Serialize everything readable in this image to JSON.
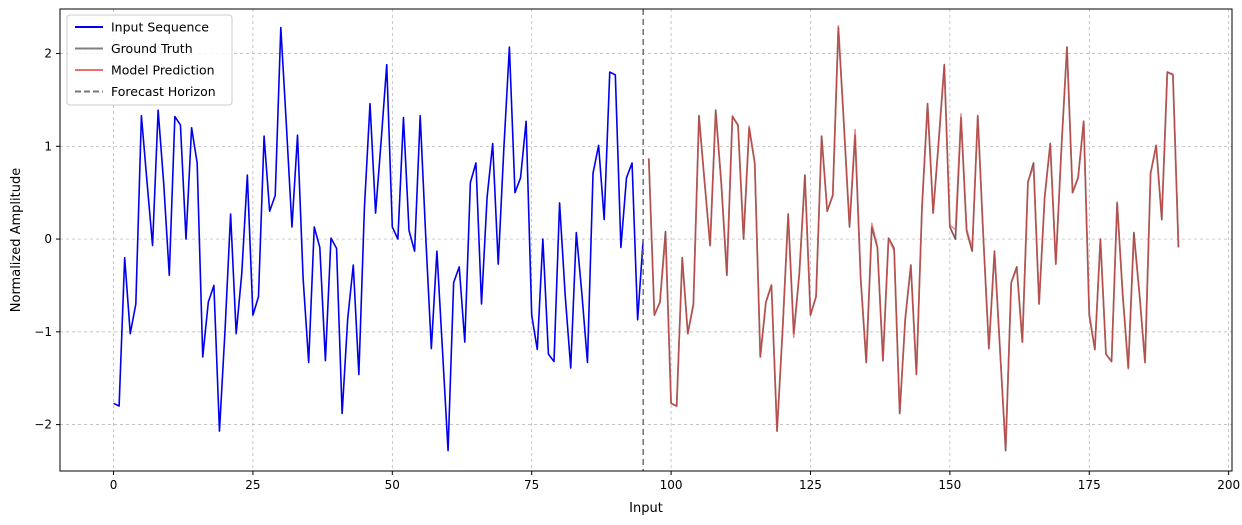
{
  "chart_data": {
    "type": "line",
    "title": "",
    "xlabel": "Input",
    "ylabel": "Normalized Amplitude",
    "xlim": [
      -9.6,
      200.6
    ],
    "ylim": [
      -2.5,
      2.48
    ],
    "xticks": [
      0,
      25,
      50,
      75,
      100,
      125,
      150,
      175,
      200
    ],
    "yticks": [
      -2,
      -1,
      0,
      1,
      2
    ],
    "xtick_labels": [
      "0",
      "25",
      "50",
      "75",
      "100",
      "125",
      "150",
      "175",
      "200"
    ],
    "ytick_labels": [
      "−2",
      "−1",
      "0",
      "1",
      "2"
    ],
    "grid": true,
    "legend_position": "top-left",
    "forecast_horizon_x": 95,
    "input_sequence": {
      "name": "Input Sequence",
      "color": "#0000ee",
      "x_start": 0,
      "values": [
        -1.77,
        -1.8,
        -0.2,
        -1.02,
        -0.7,
        1.33,
        0.62,
        -0.07,
        1.39,
        0.6,
        -0.39,
        1.32,
        1.23,
        0.0,
        1.2,
        0.82,
        -1.27,
        -0.68,
        -0.5,
        -2.07,
        -0.98,
        0.27,
        -1.02,
        -0.37,
        0.69,
        -0.82,
        -0.62,
        1.11,
        0.3,
        0.47,
        2.28,
        1.23,
        0.13,
        1.12,
        -0.42,
        -1.33,
        0.13,
        -0.09,
        -1.31,
        0.01,
        -0.1,
        -1.88,
        -0.86,
        -0.28,
        -1.46,
        0.34,
        1.46,
        0.28,
        1.06,
        1.88,
        0.13,
        0.0,
        1.31,
        0.09,
        -0.13,
        1.33,
        0.02,
        -1.18,
        -0.13,
        -1.2,
        -2.28,
        -0.47,
        -0.3,
        -1.11,
        0.61,
        0.82,
        -0.7,
        0.45,
        1.03,
        -0.27,
        0.97,
        2.07,
        0.5,
        0.66,
        1.27,
        -0.82,
        -1.19,
        0.0,
        -1.24,
        -1.32,
        0.39,
        -0.6,
        -1.39,
        0.07,
        -0.59,
        -1.33,
        0.71,
        1.01,
        0.21,
        1.8,
        1.77,
        -0.09,
        0.66,
        0.82,
        -0.87,
        0.0
      ]
    },
    "ground_truth": {
      "name": "Ground Truth",
      "color": "#808080",
      "x_start": 96,
      "values": [
        0.87,
        -0.82,
        -0.68,
        0.08,
        -1.77,
        -1.8,
        -0.2,
        -1.02,
        -0.7,
        1.33,
        0.62,
        -0.07,
        1.39,
        0.6,
        -0.39,
        1.32,
        1.23,
        0.0,
        1.2,
        0.82,
        -1.27,
        -0.68,
        -0.5,
        -2.07,
        -0.98,
        0.27,
        -1.02,
        -0.37,
        0.69,
        -0.82,
        -0.62,
        1.11,
        0.3,
        0.47,
        2.28,
        1.23,
        0.13,
        1.12,
        -0.42,
        -1.33,
        0.13,
        -0.09,
        -1.31,
        0.01,
        -0.1,
        -1.88,
        -0.86,
        -0.28,
        -1.46,
        0.34,
        1.46,
        0.28,
        1.06,
        1.88,
        0.13,
        0.0,
        1.31,
        0.09,
        -0.13,
        1.33,
        0.02,
        -1.18,
        -0.13,
        -1.2,
        -2.28,
        -0.47,
        -0.3,
        -1.11,
        0.61,
        0.82,
        -0.7,
        0.45,
        1.03,
        -0.27,
        0.97,
        2.07,
        0.5,
        0.66,
        1.27,
        -0.82,
        -1.19,
        0.0,
        -1.24,
        -1.32,
        0.39,
        -0.6,
        -1.39,
        0.07,
        -0.59,
        -1.33,
        0.71,
        1.01,
        0.21,
        1.8,
        1.77,
        -0.09
      ]
    },
    "model_prediction": {
      "name": "Model Prediction",
      "color": "#e8736e",
      "x_start": 96,
      "values": [
        0.87,
        -0.82,
        -0.68,
        0.02,
        -1.77,
        -1.8,
        -0.22,
        -1.02,
        -0.72,
        1.3,
        0.63,
        -0.06,
        1.36,
        0.62,
        -0.33,
        1.33,
        1.22,
        0.02,
        1.22,
        0.83,
        -1.27,
        -0.68,
        -0.49,
        -2.07,
        -0.98,
        0.25,
        -1.06,
        -0.36,
        0.63,
        -0.82,
        -0.62,
        1.1,
        0.3,
        0.48,
        2.3,
        1.22,
        0.15,
        1.18,
        -0.42,
        -1.3,
        0.17,
        -0.08,
        -1.31,
        0.01,
        -0.13,
        -1.88,
        -0.85,
        -0.29,
        -1.46,
        0.34,
        1.45,
        0.28,
        1.05,
        1.86,
        0.15,
        0.1,
        1.35,
        0.11,
        -0.1,
        1.33,
        0.02,
        -1.18,
        -0.13,
        -1.2,
        -2.25,
        -0.47,
        -0.32,
        -1.11,
        0.62,
        0.78,
        -0.7,
        0.44,
        1.02,
        -0.27,
        0.98,
        2.07,
        0.51,
        0.67,
        1.27,
        -0.8,
        -1.19,
        0.0,
        -1.24,
        -1.32,
        0.4,
        -0.61,
        -1.4,
        0.02,
        -0.59,
        -1.33,
        0.71,
        1.0,
        0.23,
        1.8,
        1.78,
        -0.05
      ]
    },
    "forecast_line": {
      "name": "Forecast Horizon",
      "color": "#777777"
    },
    "legend": [
      {
        "label": "Input Sequence",
        "color": "#0000ee",
        "style": "solid"
      },
      {
        "label": "Ground Truth",
        "color": "#808080",
        "style": "solid"
      },
      {
        "label": "Model Prediction",
        "color": "#e8736e",
        "style": "solid"
      },
      {
        "label": "Forecast Horizon",
        "color": "#777777",
        "style": "dashed"
      }
    ]
  }
}
